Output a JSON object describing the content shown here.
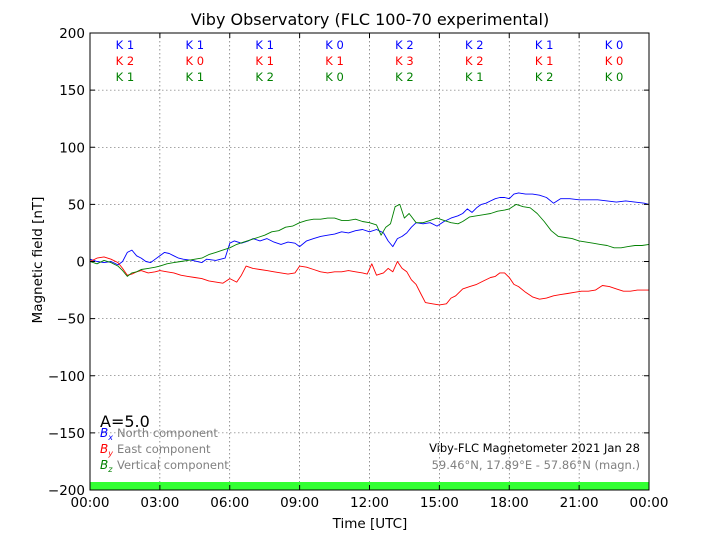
{
  "chart_data": {
    "type": "line",
    "title": "Viby Observatory (FLC 100-70 experimental)",
    "xlabel": "Time [UTC]",
    "ylabel": "Magnetic field [nT]",
    "xlim": [
      0,
      24
    ],
    "ylim": [
      -200,
      200
    ],
    "x_ticks": [
      {
        "value": 0,
        "label": "00:00"
      },
      {
        "value": 3,
        "label": "03:00"
      },
      {
        "value": 6,
        "label": "06:00"
      },
      {
        "value": 9,
        "label": "09:00"
      },
      {
        "value": 12,
        "label": "12:00"
      },
      {
        "value": 15,
        "label": "15:00"
      },
      {
        "value": 18,
        "label": "18:00"
      },
      {
        "value": 21,
        "label": "21:00"
      },
      {
        "value": 24,
        "label": "00:00"
      }
    ],
    "y_ticks": [
      {
        "value": 200,
        "label": "200"
      },
      {
        "value": 150,
        "label": "150"
      },
      {
        "value": 100,
        "label": "100"
      },
      {
        "value": 50,
        "label": "50"
      },
      {
        "value": 0,
        "label": "0"
      },
      {
        "value": -50,
        "label": "−50"
      },
      {
        "value": -100,
        "label": "−100"
      },
      {
        "value": -150,
        "label": "−150"
      },
      {
        "value": -200,
        "label": "−200"
      }
    ],
    "grid": true,
    "k_index": {
      "blocks": [
        1.5,
        4.5,
        7.5,
        10.5,
        13.5,
        16.5,
        19.5,
        22.5
      ],
      "rows": [
        {
          "color": "#0000ff",
          "labels": [
            "K 1",
            "K 1",
            "K 1",
            "K 0",
            "K 2",
            "K 2",
            "K 1",
            "K 0"
          ]
        },
        {
          "color": "#ff0000",
          "labels": [
            "K 2",
            "K 0",
            "K 1",
            "K 1",
            "K 3",
            "K 2",
            "K 1",
            "K 0"
          ]
        },
        {
          "color": "#008000",
          "labels": [
            "K 1",
            "K 1",
            "K 2",
            "K 0",
            "K 2",
            "K 1",
            "K 2",
            "K 0"
          ]
        }
      ]
    },
    "a_index": "A=5.0",
    "legend": [
      {
        "symbol": "B",
        "subscript": "x",
        "label": "North component",
        "color": "#0000ff"
      },
      {
        "symbol": "B",
        "subscript": "y",
        "label": "East component",
        "color": "#ff0000"
      },
      {
        "symbol": "B",
        "subscript": "z",
        "label": "Vertical component",
        "color": "#008000"
      }
    ],
    "legend_position": "bottom-left",
    "station_title": "Viby-FLC Magnetometer 2021 Jan 28",
    "station_coords": "59.46°N, 17.89°E - 57.86°N (magn.)",
    "status_bar": {
      "color": "#33ff33"
    },
    "series": [
      {
        "name": "North component",
        "color": "#0000ff",
        "points": [
          [
            0,
            2
          ],
          [
            0.3,
            0
          ],
          [
            0.6,
            -1
          ],
          [
            0.9,
            0
          ],
          [
            1.2,
            -3
          ],
          [
            1.4,
            0
          ],
          [
            1.6,
            8
          ],
          [
            1.8,
            10
          ],
          [
            2.0,
            5
          ],
          [
            2.2,
            3
          ],
          [
            2.4,
            0
          ],
          [
            2.6,
            -1
          ],
          [
            2.8,
            2
          ],
          [
            3.0,
            5
          ],
          [
            3.2,
            8
          ],
          [
            3.4,
            7
          ],
          [
            3.6,
            5
          ],
          [
            3.8,
            3
          ],
          [
            4.0,
            2
          ],
          [
            4.4,
            1
          ],
          [
            4.8,
            -1
          ],
          [
            5.0,
            2
          ],
          [
            5.4,
            1
          ],
          [
            5.8,
            3
          ],
          [
            6.0,
            16
          ],
          [
            6.2,
            18
          ],
          [
            6.5,
            16
          ],
          [
            6.8,
            18
          ],
          [
            7.0,
            20
          ],
          [
            7.3,
            18
          ],
          [
            7.6,
            20
          ],
          [
            7.9,
            17
          ],
          [
            8.2,
            15
          ],
          [
            8.5,
            17
          ],
          [
            8.8,
            16
          ],
          [
            9.0,
            13
          ],
          [
            9.3,
            18
          ],
          [
            9.6,
            20
          ],
          [
            9.9,
            22
          ],
          [
            10.2,
            23
          ],
          [
            10.5,
            24
          ],
          [
            10.8,
            26
          ],
          [
            11.1,
            25
          ],
          [
            11.4,
            27
          ],
          [
            11.7,
            28
          ],
          [
            12.0,
            26
          ],
          [
            12.3,
            28
          ],
          [
            12.6,
            25
          ],
          [
            12.8,
            18
          ],
          [
            13.0,
            13
          ],
          [
            13.2,
            20
          ],
          [
            13.4,
            22
          ],
          [
            13.6,
            25
          ],
          [
            13.8,
            30
          ],
          [
            14.0,
            34
          ],
          [
            14.3,
            33
          ],
          [
            14.6,
            34
          ],
          [
            14.9,
            31
          ],
          [
            15.2,
            35
          ],
          [
            15.5,
            38
          ],
          [
            15.8,
            40
          ],
          [
            16.0,
            42
          ],
          [
            16.2,
            46
          ],
          [
            16.4,
            43
          ],
          [
            16.6,
            47
          ],
          [
            16.8,
            50
          ],
          [
            17.0,
            51
          ],
          [
            17.2,
            53
          ],
          [
            17.4,
            55
          ],
          [
            17.6,
            56
          ],
          [
            17.8,
            56
          ],
          [
            18.0,
            55
          ],
          [
            18.2,
            59
          ],
          [
            18.4,
            60
          ],
          [
            18.7,
            59
          ],
          [
            19.0,
            59
          ],
          [
            19.3,
            58
          ],
          [
            19.6,
            56
          ],
          [
            19.9,
            51
          ],
          [
            20.2,
            55
          ],
          [
            20.6,
            55
          ],
          [
            21.0,
            54
          ],
          [
            21.4,
            54
          ],
          [
            21.8,
            54
          ],
          [
            22.2,
            53
          ],
          [
            22.6,
            52
          ],
          [
            23.0,
            53
          ],
          [
            23.4,
            52
          ],
          [
            23.8,
            51
          ],
          [
            24.0,
            50
          ]
        ]
      },
      {
        "name": "East component",
        "color": "#ff0000",
        "points": [
          [
            0,
            0
          ],
          [
            0.3,
            3
          ],
          [
            0.6,
            4
          ],
          [
            0.9,
            2
          ],
          [
            1.2,
            -1
          ],
          [
            1.4,
            -6
          ],
          [
            1.6,
            -12
          ],
          [
            1.8,
            -11
          ],
          [
            2.0,
            -9
          ],
          [
            2.2,
            -8
          ],
          [
            2.5,
            -10
          ],
          [
            2.8,
            -9
          ],
          [
            3.0,
            -8
          ],
          [
            3.3,
            -9
          ],
          [
            3.6,
            -10
          ],
          [
            3.9,
            -12
          ],
          [
            4.2,
            -13
          ],
          [
            4.5,
            -14
          ],
          [
            4.8,
            -15
          ],
          [
            5.1,
            -17
          ],
          [
            5.4,
            -18
          ],
          [
            5.7,
            -19
          ],
          [
            6.0,
            -15
          ],
          [
            6.3,
            -18
          ],
          [
            6.5,
            -12
          ],
          [
            6.7,
            -4
          ],
          [
            7.0,
            -6
          ],
          [
            7.3,
            -7
          ],
          [
            7.6,
            -8
          ],
          [
            7.9,
            -9
          ],
          [
            8.2,
            -10
          ],
          [
            8.5,
            -11
          ],
          [
            8.8,
            -10
          ],
          [
            9.0,
            -4
          ],
          [
            9.3,
            -5
          ],
          [
            9.6,
            -7
          ],
          [
            9.9,
            -9
          ],
          [
            10.2,
            -10
          ],
          [
            10.5,
            -9
          ],
          [
            10.8,
            -9
          ],
          [
            11.1,
            -8
          ],
          [
            11.4,
            -9
          ],
          [
            11.7,
            -10
          ],
          [
            11.9,
            -11
          ],
          [
            12.1,
            -2
          ],
          [
            12.3,
            -12
          ],
          [
            12.6,
            -10
          ],
          [
            12.8,
            -6
          ],
          [
            13.0,
            -9
          ],
          [
            13.2,
            0
          ],
          [
            13.4,
            -6
          ],
          [
            13.6,
            -9
          ],
          [
            13.8,
            -16
          ],
          [
            14.0,
            -20
          ],
          [
            14.2,
            -28
          ],
          [
            14.4,
            -36
          ],
          [
            14.7,
            -37
          ],
          [
            15.0,
            -38
          ],
          [
            15.3,
            -37
          ],
          [
            15.5,
            -32
          ],
          [
            15.7,
            -30
          ],
          [
            16.0,
            -24
          ],
          [
            16.3,
            -22
          ],
          [
            16.6,
            -20
          ],
          [
            16.9,
            -17
          ],
          [
            17.2,
            -14
          ],
          [
            17.4,
            -13
          ],
          [
            17.6,
            -10
          ],
          [
            17.8,
            -10
          ],
          [
            18.0,
            -14
          ],
          [
            18.2,
            -20
          ],
          [
            18.4,
            -22
          ],
          [
            18.7,
            -27
          ],
          [
            19.0,
            -31
          ],
          [
            19.3,
            -33
          ],
          [
            19.6,
            -32
          ],
          [
            19.9,
            -30
          ],
          [
            20.2,
            -29
          ],
          [
            20.5,
            -28
          ],
          [
            20.8,
            -27
          ],
          [
            21.1,
            -26
          ],
          [
            21.4,
            -26
          ],
          [
            21.7,
            -25
          ],
          [
            22.0,
            -21
          ],
          [
            22.3,
            -22
          ],
          [
            22.6,
            -24
          ],
          [
            22.9,
            -26
          ],
          [
            23.2,
            -26
          ],
          [
            23.5,
            -25
          ],
          [
            23.8,
            -25
          ],
          [
            24.0,
            -25
          ]
        ]
      },
      {
        "name": "Vertical component",
        "color": "#008000",
        "points": [
          [
            0,
            0
          ],
          [
            0.3,
            -2
          ],
          [
            0.6,
            1
          ],
          [
            0.9,
            -1
          ],
          [
            1.2,
            -4
          ],
          [
            1.4,
            -8
          ],
          [
            1.6,
            -13
          ],
          [
            1.8,
            -10
          ],
          [
            2.0,
            -9
          ],
          [
            2.2,
            -7
          ],
          [
            2.5,
            -6
          ],
          [
            2.8,
            -5
          ],
          [
            3.0,
            -4
          ],
          [
            3.3,
            -2
          ],
          [
            3.6,
            -1
          ],
          [
            3.9,
            0
          ],
          [
            4.2,
            1
          ],
          [
            4.5,
            2
          ],
          [
            4.8,
            3
          ],
          [
            5.1,
            6
          ],
          [
            5.4,
            8
          ],
          [
            5.7,
            10
          ],
          [
            6.0,
            12
          ],
          [
            6.3,
            15
          ],
          [
            6.6,
            17
          ],
          [
            6.9,
            19
          ],
          [
            7.2,
            21
          ],
          [
            7.5,
            23
          ],
          [
            7.8,
            26
          ],
          [
            8.1,
            27
          ],
          [
            8.4,
            30
          ],
          [
            8.7,
            31
          ],
          [
            9.0,
            34
          ],
          [
            9.3,
            36
          ],
          [
            9.6,
            37
          ],
          [
            9.9,
            37
          ],
          [
            10.2,
            38
          ],
          [
            10.5,
            38
          ],
          [
            10.8,
            36
          ],
          [
            11.1,
            36
          ],
          [
            11.4,
            37
          ],
          [
            11.7,
            35
          ],
          [
            12.0,
            34
          ],
          [
            12.3,
            32
          ],
          [
            12.5,
            23
          ],
          [
            12.7,
            30
          ],
          [
            12.9,
            33
          ],
          [
            13.1,
            48
          ],
          [
            13.3,
            50
          ],
          [
            13.5,
            38
          ],
          [
            13.7,
            42
          ],
          [
            14.0,
            34
          ],
          [
            14.3,
            34
          ],
          [
            14.6,
            36
          ],
          [
            14.9,
            38
          ],
          [
            15.2,
            36
          ],
          [
            15.5,
            34
          ],
          [
            15.8,
            33
          ],
          [
            16.0,
            35
          ],
          [
            16.3,
            39
          ],
          [
            16.6,
            40
          ],
          [
            16.9,
            41
          ],
          [
            17.2,
            42
          ],
          [
            17.5,
            44
          ],
          [
            17.8,
            45
          ],
          [
            18.0,
            46
          ],
          [
            18.3,
            50
          ],
          [
            18.6,
            48
          ],
          [
            18.9,
            47
          ],
          [
            19.2,
            42
          ],
          [
            19.5,
            35
          ],
          [
            19.8,
            27
          ],
          [
            20.1,
            22
          ],
          [
            20.4,
            21
          ],
          [
            20.7,
            20
          ],
          [
            21.0,
            18
          ],
          [
            21.3,
            17
          ],
          [
            21.6,
            16
          ],
          [
            21.9,
            15
          ],
          [
            22.2,
            14
          ],
          [
            22.5,
            12
          ],
          [
            22.8,
            12
          ],
          [
            23.1,
            13
          ],
          [
            23.4,
            14
          ],
          [
            23.7,
            14
          ],
          [
            24.0,
            15
          ]
        ]
      }
    ]
  }
}
